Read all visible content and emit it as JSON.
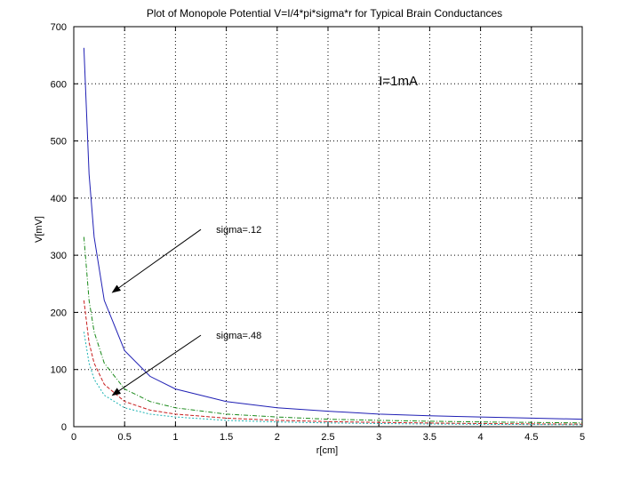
{
  "chart_data": {
    "type": "line",
    "title": "Plot of Monopole Potential V=I/4*pi*sigma*r for Typical Brain Conductances",
    "xlabel": "r[cm]",
    "ylabel": "V[mV]",
    "xlim": [
      0,
      5
    ],
    "ylim": [
      0,
      700
    ],
    "xticks": [
      0,
      0.5,
      1,
      1.5,
      2,
      2.5,
      3,
      3.5,
      4,
      4.5,
      5
    ],
    "xtick_labels": [
      "0",
      "0.5",
      "1",
      "1.5",
      "2",
      "2.5",
      "3",
      "3.5",
      "4",
      "4.5",
      "5"
    ],
    "yticks": [
      0,
      100,
      200,
      300,
      400,
      500,
      600,
      700
    ],
    "ytick_labels": [
      "0",
      "100",
      "200",
      "300",
      "400",
      "500",
      "600",
      "700"
    ],
    "grid": true,
    "series": [
      {
        "color": "#1f1fb4",
        "x": [
          0.1,
          0.15,
          0.2,
          0.3,
          0.5,
          0.75,
          1,
          1.5,
          2,
          2.5,
          3,
          3.5,
          4,
          4.5,
          5
        ],
        "y": [
          663,
          442,
          332,
          221,
          133,
          88,
          66,
          44,
          33,
          27,
          22,
          19,
          17,
          15,
          13
        ]
      },
      {
        "color": "#1a8a1a",
        "x": [
          0.1,
          0.15,
          0.2,
          0.3,
          0.5,
          0.75,
          1,
          1.5,
          2,
          2.5,
          3,
          3.5,
          4,
          4.5,
          5
        ],
        "y": [
          332,
          221,
          166,
          111,
          66,
          44,
          33,
          22,
          17,
          13,
          11,
          9.5,
          8.3,
          7.4,
          6.6
        ]
      },
      {
        "color": "#c81e1e",
        "x": [
          0.1,
          0.15,
          0.2,
          0.3,
          0.5,
          0.75,
          1,
          1.5,
          2,
          2.5,
          3,
          3.5,
          4,
          4.5,
          5
        ],
        "y": [
          221,
          147,
          111,
          74,
          44,
          29,
          22,
          15,
          11,
          8.8,
          7.4,
          6.3,
          5.5,
          4.9,
          4.4
        ]
      },
      {
        "color": "#1fb4b4",
        "x": [
          0.1,
          0.15,
          0.2,
          0.3,
          0.5,
          0.75,
          1,
          1.5,
          2,
          2.5,
          3,
          3.5,
          4,
          4.5,
          5
        ],
        "y": [
          166,
          111,
          83,
          55,
          33,
          22,
          17,
          11,
          8.3,
          6.6,
          5.5,
          4.7,
          4.1,
          3.7,
          3.3
        ]
      }
    ],
    "annotations": [
      {
        "text": "sigma=.12",
        "arrow_to": [
          0.38,
          235
        ],
        "arrow_from": [
          1.25,
          345
        ]
      },
      {
        "text": "sigma=.48",
        "arrow_to": [
          0.38,
          55
        ],
        "arrow_from": [
          1.25,
          160
        ]
      },
      {
        "text": "I=1mA"
      }
    ],
    "annotation_positions": {
      "sigma12": [
        1.4,
        345
      ],
      "sigma48": [
        1.4,
        160
      ],
      "current": [
        3,
        605
      ]
    }
  }
}
